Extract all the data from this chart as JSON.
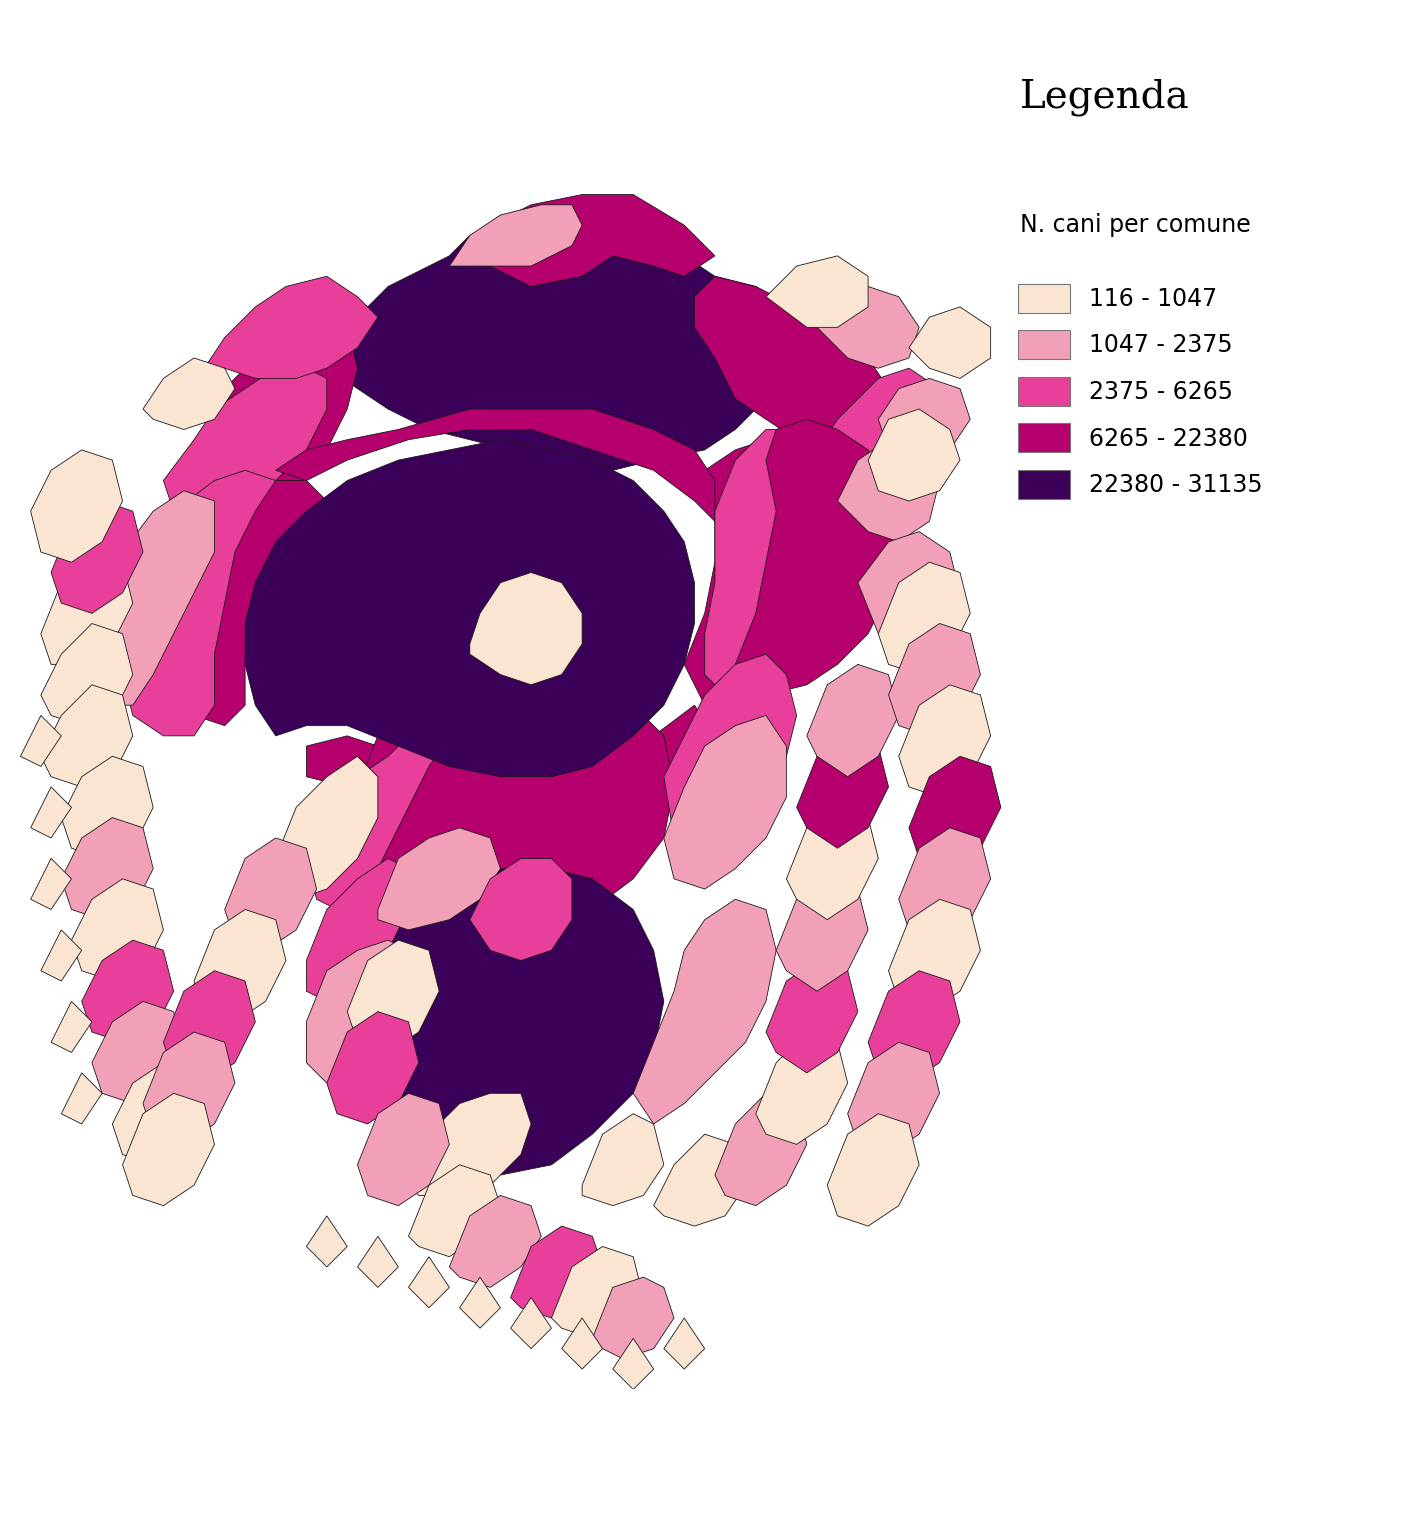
{
  "legend_title": "Legenda",
  "legend_subtitle": "N. cani per comune",
  "legend_entries": [
    {
      "label": "116 - 1047",
      "color": "#FAE5D3"
    },
    {
      "label": "1047 - 2375",
      "color": "#F2A0B8"
    },
    {
      "label": "2375 - 6265",
      "color": "#E8409A"
    },
    {
      "label": "6265 - 22380",
      "color": "#B5006E"
    },
    {
      "label": "22380 - 31135",
      "color": "#3B0057"
    }
  ],
  "edge_color": "#1a1a1a",
  "edge_width": 0.6,
  "bg_color": "#FFFFFF",
  "title_fontsize": 28,
  "subtitle_fontsize": 17,
  "legend_fontsize": 17,
  "figsize": [
    14.27,
    15.33
  ],
  "dpi": 100
}
